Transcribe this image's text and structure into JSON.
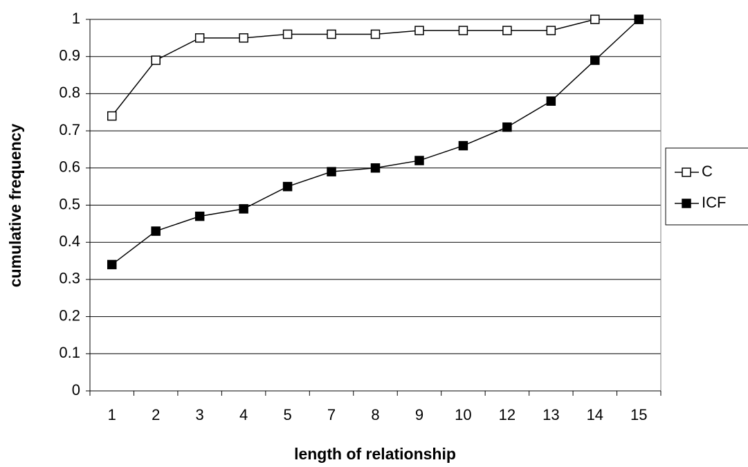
{
  "chart_data": {
    "type": "line",
    "x_label": "length of relationship",
    "y_label": "cumulative frequency",
    "categories": [
      "1",
      "2",
      "3",
      "4",
      "5",
      "7",
      "8",
      "9",
      "10",
      "12",
      "13",
      "14",
      "15"
    ],
    "series": [
      {
        "name": "C",
        "color": "#000000",
        "marker": "open-square",
        "values": [
          0.74,
          0.89,
          0.95,
          0.95,
          0.96,
          0.96,
          0.96,
          0.97,
          0.97,
          0.97,
          0.97,
          1,
          1
        ]
      },
      {
        "name": "ICF",
        "color": "#000000",
        "marker": "filled-square",
        "values": [
          0.34,
          0.43,
          0.47,
          0.49,
          0.55,
          0.59,
          0.6,
          0.62,
          0.66,
          0.71,
          0.78,
          0.89,
          1
        ]
      }
    ],
    "ylim": [
      0,
      1
    ],
    "yticks": [
      0,
      0.1,
      0.2,
      0.3,
      0.4,
      0.5,
      0.6,
      0.7,
      0.8,
      0.9,
      1
    ],
    "grid": true,
    "legend": "right"
  }
}
